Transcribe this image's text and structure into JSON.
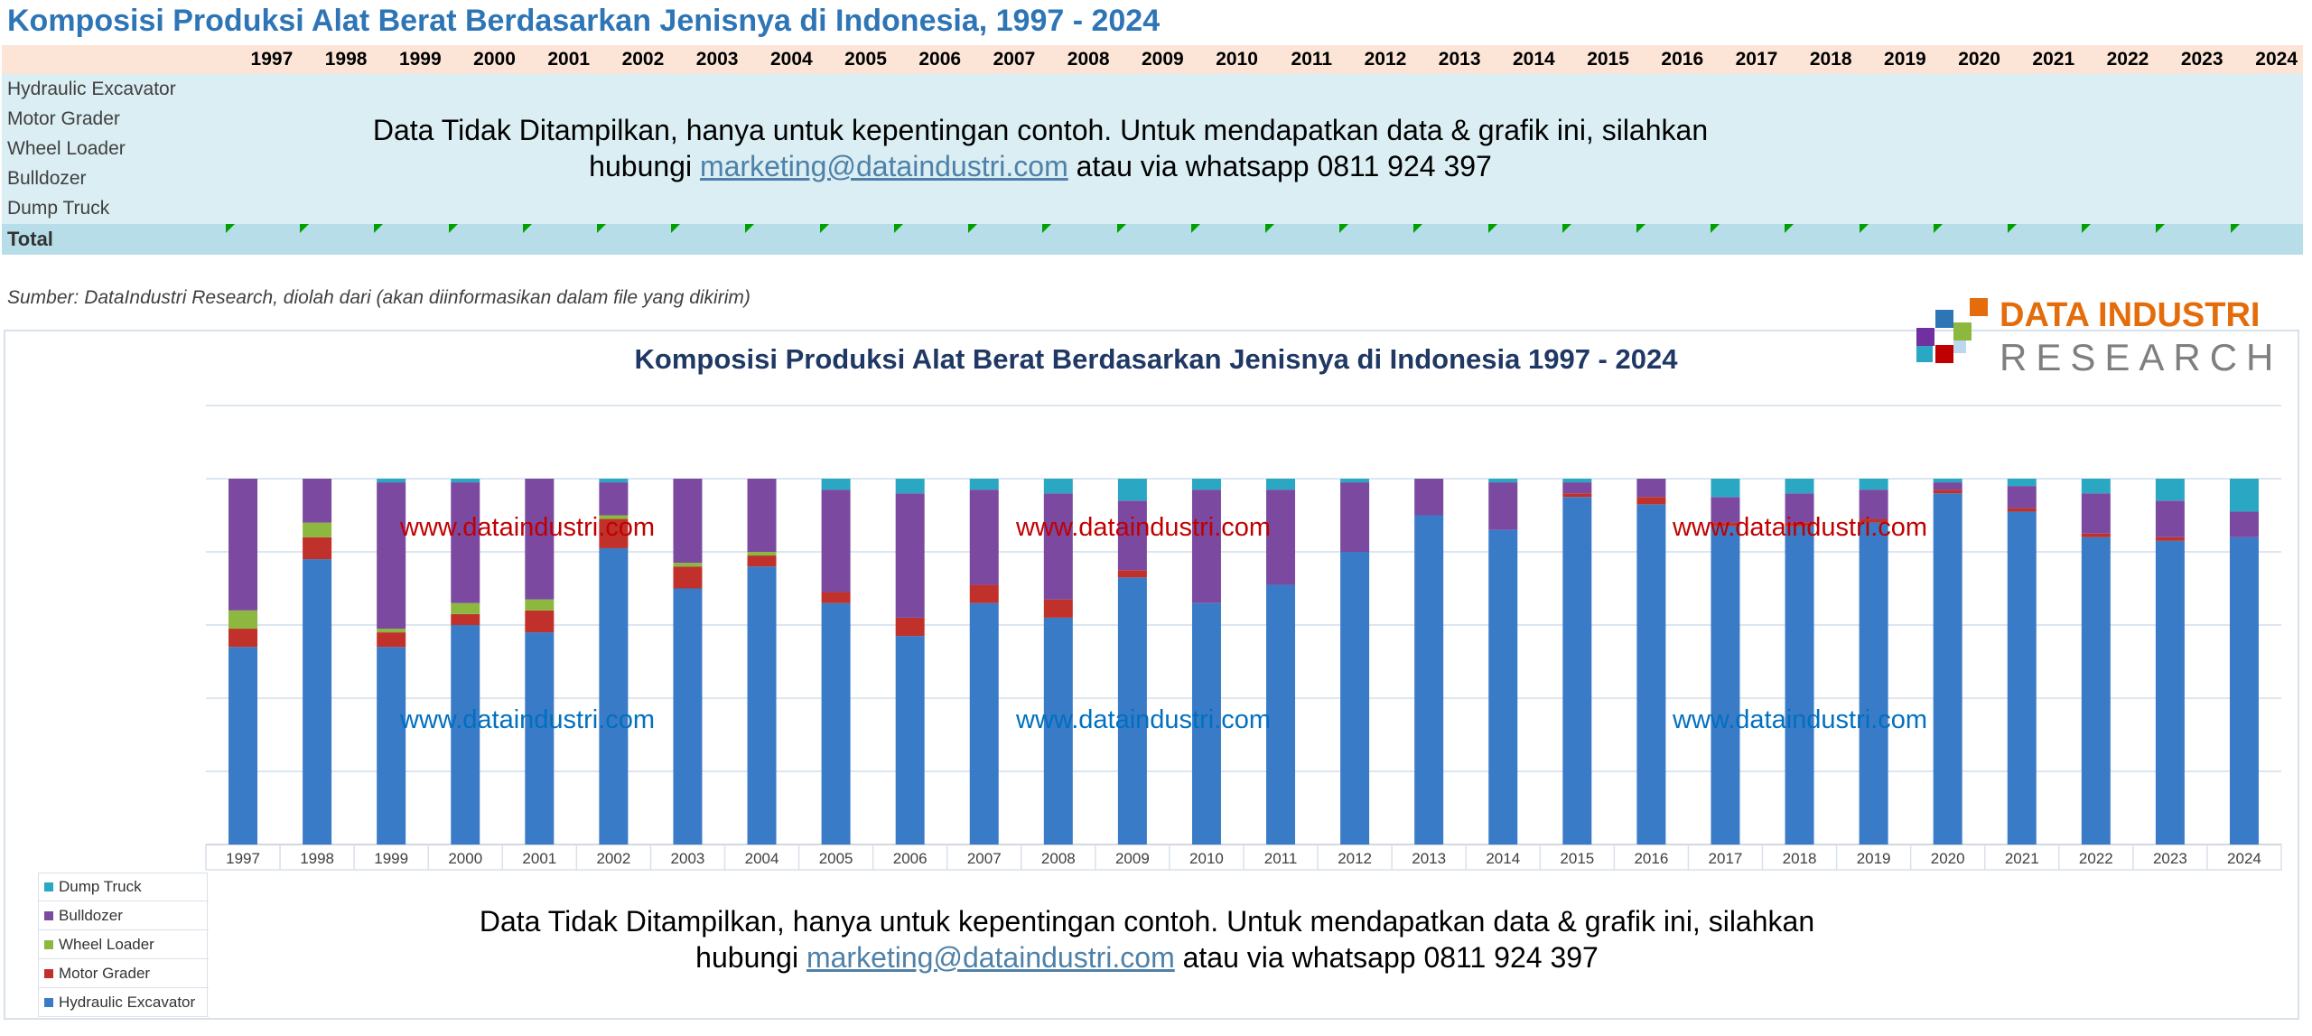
{
  "sheet_title": "Komposisi Produksi Alat Berat Berdasarkan Jenisnya di Indonesia, 1997 - 2024",
  "table": {
    "years": [
      "1997",
      "1998",
      "1999",
      "2000",
      "2001",
      "2002",
      "2003",
      "2004",
      "2005",
      "2006",
      "2007",
      "2008",
      "2009",
      "2010",
      "2011",
      "2012",
      "2013",
      "2014",
      "2015",
      "2016",
      "2017",
      "2018",
      "2019",
      "2020",
      "2021",
      "2022",
      "2023",
      "2024"
    ],
    "rows": [
      "Hydraulic Excavator",
      "Motor Grader",
      "Wheel Loader",
      "Bulldozer",
      "Dump Truck"
    ],
    "total_label": "Total"
  },
  "notice": {
    "line1": "Data Tidak Ditampilkan, hanya untuk kepentingan contoh. Untuk mendapatkan data & grafik  ini, silahkan",
    "line2_prefix": "hubungi ",
    "email": "marketing@dataindustri.com",
    "line2_suffix": " atau via whatsapp 0811 924 397"
  },
  "source": "Sumber: DataIndustri Research, diolah dari (akan diinformasikan dalam file yang dikirim)",
  "logo": {
    "line1": "DATA INDUSTRI",
    "line2": "RESEARCH",
    "orange": "#E46C0A",
    "gray": "#7F7F7F"
  },
  "watermark": "www.dataindustri.com",
  "colors": {
    "Hydraulic Excavator": "#3A7BC8",
    "Motor Grader": "#C0312B",
    "Wheel Loader": "#8DB83F",
    "Bulldozer": "#7B4AA0",
    "Dump Truck": "#2AA7C2",
    "title": "#1F3864",
    "watermark_red": "#C00000",
    "watermark_blue": "#0070C0"
  },
  "chart_data": {
    "type": "bar",
    "stacked": true,
    "title": "Komposisi Produksi Alat Berat Berdasarkan Jenisnya di Indonesia 1997 - 2024",
    "categories": [
      "1997",
      "1998",
      "1999",
      "2000",
      "2001",
      "2002",
      "2003",
      "2004",
      "2005",
      "2006",
      "2007",
      "2008",
      "2009",
      "2010",
      "2011",
      "2012",
      "2013",
      "2014",
      "2015",
      "2016",
      "2017",
      "2018",
      "2019",
      "2020",
      "2021",
      "2022",
      "2023",
      "2024"
    ],
    "ylim": [
      0,
      1
    ],
    "grid": true,
    "legend": "bottom-left",
    "series": [
      {
        "name": "Hydraulic Excavator",
        "values": [
          0.54,
          0.78,
          0.54,
          0.6,
          0.58,
          0.81,
          0.7,
          0.76,
          0.66,
          0.57,
          0.66,
          0.62,
          0.73,
          0.66,
          0.71,
          0.8,
          0.9,
          0.86,
          0.95,
          0.93,
          0.87,
          0.87,
          0.88,
          0.96,
          0.91,
          0.84,
          0.83,
          0.84
        ]
      },
      {
        "name": "Motor Grader",
        "values": [
          0.05,
          0.06,
          0.04,
          0.03,
          0.06,
          0.08,
          0.06,
          0.03,
          0.03,
          0.05,
          0.05,
          0.05,
          0.02,
          0.0,
          0.0,
          0.0,
          0.0,
          0.0,
          0.01,
          0.02,
          0.01,
          0.01,
          0.01,
          0.01,
          0.01,
          0.01,
          0.01,
          0.0
        ]
      },
      {
        "name": "Wheel Loader",
        "values": [
          0.05,
          0.04,
          0.01,
          0.03,
          0.03,
          0.01,
          0.01,
          0.01,
          0.0,
          0.0,
          0.0,
          0.0,
          0.0,
          0.0,
          0.0,
          0.0,
          0.0,
          0.0,
          0.0,
          0.0,
          0.0,
          0.0,
          0.0,
          0.0,
          0.0,
          0.0,
          0.0,
          0.0
        ]
      },
      {
        "name": "Bulldozer",
        "values": [
          0.36,
          0.12,
          0.4,
          0.33,
          0.33,
          0.09,
          0.23,
          0.2,
          0.28,
          0.34,
          0.26,
          0.29,
          0.19,
          0.31,
          0.26,
          0.19,
          0.1,
          0.13,
          0.03,
          0.05,
          0.07,
          0.08,
          0.08,
          0.02,
          0.06,
          0.11,
          0.1,
          0.07
        ]
      },
      {
        "name": "Dump Truck",
        "values": [
          0.0,
          0.0,
          0.01,
          0.01,
          0.0,
          0.01,
          0.0,
          0.0,
          0.03,
          0.04,
          0.03,
          0.04,
          0.06,
          0.03,
          0.03,
          0.01,
          0.0,
          0.01,
          0.01,
          0.0,
          0.05,
          0.04,
          0.03,
          0.01,
          0.02,
          0.04,
          0.06,
          0.09
        ]
      }
    ]
  }
}
